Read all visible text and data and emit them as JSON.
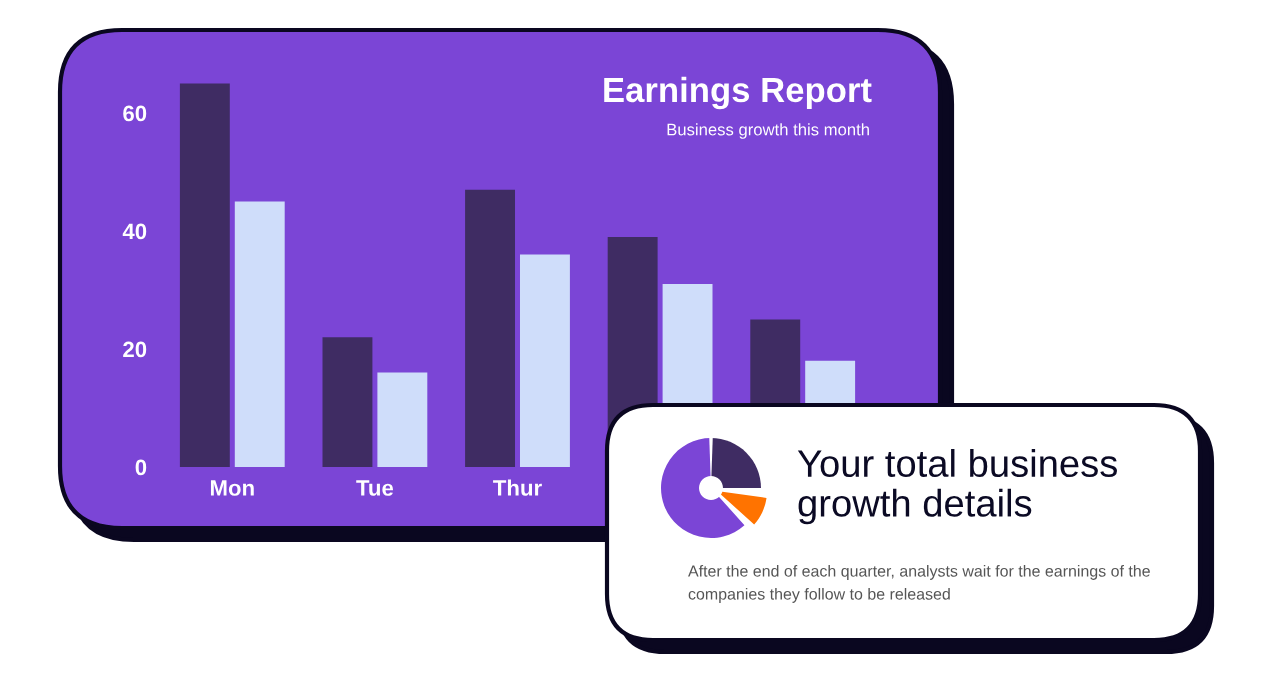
{
  "chart_data": [
    {
      "type": "bar",
      "title": "Earnings Report",
      "subtitle": "Business growth this month",
      "categories": [
        "Mon",
        "Tue",
        "Thur",
        null,
        null
      ],
      "series": [
        {
          "color": "#3f2c63",
          "values": [
            65,
            22,
            47,
            39,
            25
          ]
        },
        {
          "color": "#cfddfa",
          "values": [
            45,
            16,
            36,
            31,
            18
          ]
        }
      ],
      "ylim": [
        0,
        66
      ],
      "yticks": [
        0,
        20,
        40,
        60
      ]
    },
    {
      "type": "other",
      "title": "Your total business growth details",
      "annotations": [
        "After the end of each quarter, analysts wait for the earnings of the companies they follow to be released"
      ]
    }
  ]
}
